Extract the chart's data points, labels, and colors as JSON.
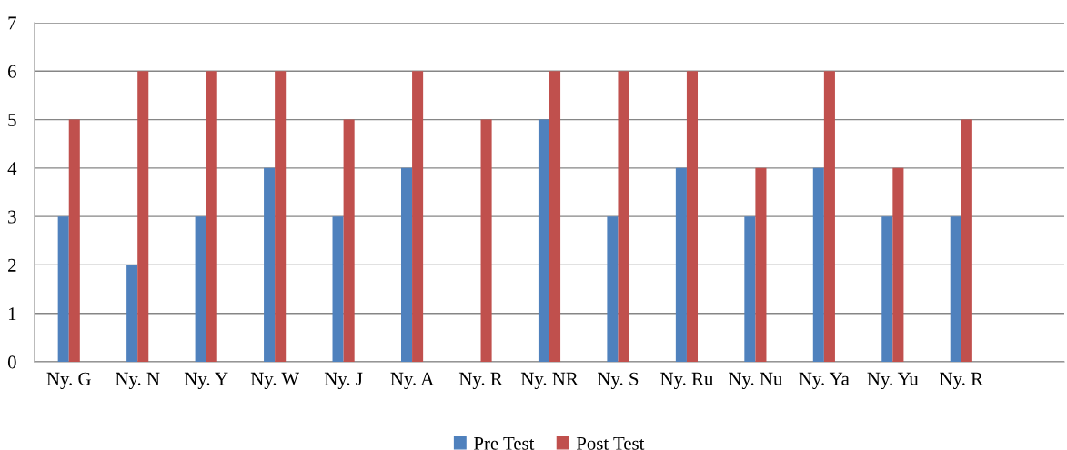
{
  "chart_data": {
    "type": "bar",
    "categories": [
      "Ny. G",
      "Ny. N",
      "Ny. Y",
      "Ny. W",
      "Ny. J",
      "Ny. A",
      "Ny. R",
      "Ny. NR",
      "Ny. S",
      "Ny. Ru",
      "Ny. Nu",
      "Ny. Ya",
      "Ny. Yu",
      "Ny. R",
      null
    ],
    "series": [
      {
        "name": "Pre Test",
        "color": "#4f81bd",
        "values": [
          3,
          2,
          3,
          4,
          3,
          4,
          0,
          5,
          3,
          4,
          3,
          4,
          3,
          3,
          null
        ]
      },
      {
        "name": "Post Test",
        "color": "#c0504d",
        "values": [
          5,
          6,
          6,
          6,
          5,
          6,
          5,
          6,
          6,
          6,
          4,
          6,
          4,
          5,
          null
        ]
      }
    ],
    "ylim": [
      0,
      7
    ],
    "yticks": [
      0,
      1,
      2,
      3,
      4,
      5,
      6,
      7
    ],
    "grid": "y",
    "legend": "bottom"
  }
}
